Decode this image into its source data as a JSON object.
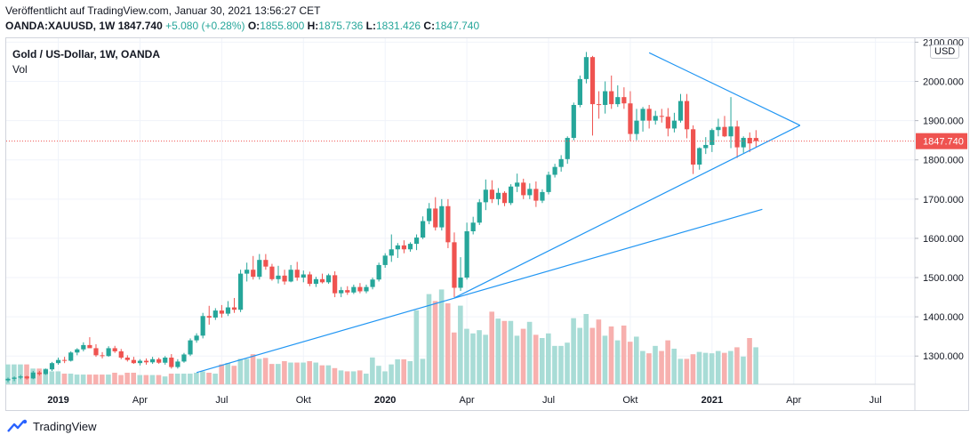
{
  "header": {
    "published": "Veröffentlicht auf TradingView.com, Januar 30, 2021 13:56:27 CET",
    "symbol": "OANDA:XAUUSD, 1W",
    "last": "1847.740",
    "change": "+5.080 (+0.28%)",
    "open_label": "O:",
    "open": "1855.800",
    "high_label": "H:",
    "high": "1875.736",
    "low_label": "L:",
    "low": "1831.426",
    "close_label": "C:",
    "close": "1847.740"
  },
  "legend": {
    "title": "Gold  / US-Dollar, 1W, OANDA",
    "volume": "Vol"
  },
  "price_axis": {
    "currency": "USD",
    "last_price_label": "1847.740"
  },
  "footer": {
    "brand": "TradingView"
  },
  "colors": {
    "up": "#26a69a",
    "down": "#ef5350",
    "trendline": "#2196f3",
    "up_vol": "#a8dcd6",
    "down_vol": "#f7b0ae"
  },
  "chart_data": {
    "type": "candlestick",
    "title": "Gold  / US-Dollar, 1W, OANDA",
    "x_ticks": [
      {
        "label": "2019",
        "bold": true,
        "week": 8
      },
      {
        "label": "Apr",
        "bold": false,
        "week": 21
      },
      {
        "label": "Jul",
        "bold": false,
        "week": 34
      },
      {
        "label": "Okt",
        "bold": false,
        "week": 47
      },
      {
        "label": "2020",
        "bold": true,
        "week": 60
      },
      {
        "label": "Apr",
        "bold": false,
        "week": 73
      },
      {
        "label": "Jul",
        "bold": false,
        "week": 86
      },
      {
        "label": "Okt",
        "bold": false,
        "week": 99
      },
      {
        "label": "2021",
        "bold": true,
        "week": 112
      },
      {
        "label": "Apr",
        "bold": false,
        "week": 125
      },
      {
        "label": "Jul",
        "bold": false,
        "week": 138
      }
    ],
    "y_ticks": [
      "2100.000",
      "2000.000",
      "1900.000",
      "1800.000",
      "1700.000",
      "1600.000",
      "1500.000",
      "1400.000",
      "1300.000"
    ],
    "y_range": [
      1228,
      2110
    ],
    "last_price": 1847.74,
    "candles": [
      [
        1238,
        1245,
        1233,
        1242
      ],
      [
        1242,
        1248,
        1236,
        1245
      ],
      [
        1245,
        1252,
        1241,
        1248
      ],
      [
        1248,
        1250,
        1240,
        1243
      ],
      [
        1243,
        1262,
        1241,
        1258
      ],
      [
        1258,
        1262,
        1250,
        1254
      ],
      [
        1254,
        1268,
        1252,
        1266
      ],
      [
        1266,
        1285,
        1262,
        1282
      ],
      [
        1282,
        1296,
        1278,
        1290
      ],
      [
        1290,
        1298,
        1282,
        1288
      ],
      [
        1288,
        1312,
        1286,
        1309
      ],
      [
        1309,
        1320,
        1302,
        1317
      ],
      [
        1317,
        1335,
        1312,
        1328
      ],
      [
        1328,
        1348,
        1322,
        1320
      ],
      [
        1320,
        1330,
        1298,
        1302
      ],
      [
        1302,
        1310,
        1294,
        1300
      ],
      [
        1300,
        1325,
        1298,
        1320
      ],
      [
        1320,
        1326,
        1308,
        1312
      ],
      [
        1312,
        1318,
        1292,
        1296
      ],
      [
        1296,
        1302,
        1286,
        1290
      ],
      [
        1290,
        1298,
        1280,
        1282
      ],
      [
        1282,
        1292,
        1276,
        1288
      ],
      [
        1288,
        1294,
        1278,
        1284
      ],
      [
        1284,
        1298,
        1280,
        1292
      ],
      [
        1292,
        1296,
        1280,
        1283
      ],
      [
        1283,
        1300,
        1278,
        1296
      ],
      [
        1296,
        1305,
        1268,
        1272
      ],
      [
        1272,
        1292,
        1268,
        1286
      ],
      [
        1286,
        1308,
        1283,
        1304
      ],
      [
        1304,
        1345,
        1300,
        1340
      ],
      [
        1340,
        1358,
        1334,
        1352
      ],
      [
        1352,
        1410,
        1345,
        1402
      ],
      [
        1402,
        1428,
        1380,
        1398
      ],
      [
        1398,
        1422,
        1392,
        1416
      ],
      [
        1416,
        1430,
        1398,
        1408
      ],
      [
        1408,
        1440,
        1402,
        1424
      ],
      [
        1424,
        1448,
        1410,
        1418
      ],
      [
        1418,
        1520,
        1412,
        1510
      ],
      [
        1510,
        1538,
        1490,
        1520
      ],
      [
        1520,
        1555,
        1495,
        1502
      ],
      [
        1502,
        1560,
        1495,
        1545
      ],
      [
        1545,
        1560,
        1520,
        1528
      ],
      [
        1528,
        1535,
        1492,
        1496
      ],
      [
        1496,
        1530,
        1485,
        1505
      ],
      [
        1505,
        1520,
        1482,
        1490
      ],
      [
        1490,
        1532,
        1488,
        1520
      ],
      [
        1520,
        1540,
        1492,
        1500
      ],
      [
        1500,
        1518,
        1488,
        1508
      ],
      [
        1508,
        1515,
        1478,
        1484
      ],
      [
        1484,
        1502,
        1476,
        1496
      ],
      [
        1496,
        1510,
        1485,
        1488
      ],
      [
        1488,
        1510,
        1484,
        1506
      ],
      [
        1506,
        1516,
        1450,
        1460
      ],
      [
        1460,
        1476,
        1450,
        1468
      ],
      [
        1468,
        1478,
        1456,
        1462
      ],
      [
        1462,
        1482,
        1458,
        1476
      ],
      [
        1476,
        1486,
        1460,
        1465
      ],
      [
        1465,
        1482,
        1460,
        1476
      ],
      [
        1476,
        1500,
        1470,
        1495
      ],
      [
        1495,
        1538,
        1490,
        1532
      ],
      [
        1532,
        1562,
        1525,
        1556
      ],
      [
        1556,
        1610,
        1540,
        1572
      ],
      [
        1572,
        1588,
        1550,
        1582
      ],
      [
        1582,
        1595,
        1562,
        1572
      ],
      [
        1572,
        1590,
        1566,
        1586
      ],
      [
        1586,
        1610,
        1570,
        1602
      ],
      [
        1602,
        1656,
        1598,
        1644
      ],
      [
        1644,
        1690,
        1636,
        1676
      ],
      [
        1676,
        1705,
        1620,
        1628
      ],
      [
        1628,
        1700,
        1620,
        1682
      ],
      [
        1682,
        1700,
        1575,
        1590
      ],
      [
        1590,
        1615,
        1450,
        1474
      ],
      [
        1474,
        1552,
        1466,
        1500
      ],
      [
        1500,
        1640,
        1495,
        1618
      ],
      [
        1618,
        1655,
        1610,
        1640
      ],
      [
        1640,
        1700,
        1634,
        1692
      ],
      [
        1692,
        1750,
        1672,
        1724
      ],
      [
        1724,
        1748,
        1690,
        1700
      ],
      [
        1700,
        1728,
        1685,
        1716
      ],
      [
        1716,
        1720,
        1682,
        1690
      ],
      [
        1690,
        1738,
        1685,
        1732
      ],
      [
        1732,
        1765,
        1718,
        1742
      ],
      [
        1742,
        1752,
        1700,
        1710
      ],
      [
        1710,
        1740,
        1700,
        1726
      ],
      [
        1726,
        1745,
        1680,
        1696
      ],
      [
        1696,
        1725,
        1690,
        1718
      ],
      [
        1718,
        1770,
        1712,
        1762
      ],
      [
        1762,
        1790,
        1755,
        1782
      ],
      [
        1782,
        1812,
        1770,
        1802
      ],
      [
        1802,
        1860,
        1790,
        1856
      ],
      [
        1856,
        1946,
        1850,
        1940
      ],
      [
        1940,
        2015,
        1934,
        2006
      ],
      [
        2006,
        2075,
        1995,
        2062
      ],
      [
        2062,
        2065,
        1862,
        1942
      ],
      [
        1942,
        1975,
        1905,
        1940
      ],
      [
        1940,
        2000,
        1918,
        1975
      ],
      [
        1975,
        2015,
        1930,
        1942
      ],
      [
        1942,
        1990,
        1935,
        1960
      ],
      [
        1960,
        1985,
        1930,
        1944
      ],
      [
        1944,
        1975,
        1848,
        1866
      ],
      [
        1866,
        1930,
        1850,
        1900
      ],
      [
        1900,
        1935,
        1872,
        1930
      ],
      [
        1930,
        1940,
        1880,
        1900
      ],
      [
        1900,
        1925,
        1890,
        1912
      ],
      [
        1912,
        1930,
        1895,
        1910
      ],
      [
        1910,
        1932,
        1860,
        1880
      ],
      [
        1880,
        1920,
        1870,
        1900
      ],
      [
        1900,
        1968,
        1895,
        1950
      ],
      [
        1950,
        1968,
        1855,
        1878
      ],
      [
        1878,
        1888,
        1764,
        1788
      ],
      [
        1788,
        1832,
        1775,
        1830
      ],
      [
        1830,
        1858,
        1815,
        1838
      ],
      [
        1838,
        1880,
        1820,
        1876
      ],
      [
        1876,
        1905,
        1860,
        1884
      ],
      [
        1884,
        1912,
        1858,
        1860
      ],
      [
        1860,
        1960,
        1830,
        1885
      ],
      [
        1885,
        1900,
        1805,
        1832
      ],
      [
        1832,
        1860,
        1818,
        1856
      ],
      [
        1856,
        1870,
        1820,
        1842
      ],
      [
        1855.8,
        1875.736,
        1831.426,
        1847.74
      ]
    ],
    "volume": [
      0.43,
      0.43,
      0.43,
      0.43,
      0.34,
      0.34,
      0.34,
      0.28,
      0.28,
      0.23,
      0.23,
      0.21,
      0.21,
      0.21,
      0.21,
      0.21,
      0.21,
      0.25,
      0.2,
      0.25,
      0.25,
      0.2,
      0.2,
      0.2,
      0.2,
      0.17,
      0.23,
      0.23,
      0.23,
      0.23,
      0.25,
      0.28,
      0.25,
      0.23,
      0.43,
      0.46,
      0.4,
      0.55,
      0.55,
      0.65,
      0.55,
      0.57,
      0.44,
      0.44,
      0.5,
      0.47,
      0.47,
      0.47,
      0.5,
      0.47,
      0.41,
      0.41,
      0.35,
      0.3,
      0.28,
      0.28,
      0.3,
      0.23,
      0.58,
      0.4,
      0.28,
      0.43,
      0.54,
      0.54,
      0.5,
      1.6,
      0.55,
      1.95,
      1.8,
      2.05,
      1.75,
      1.12,
      1.7,
      1.2,
      1.1,
      1.17,
      1.07,
      1.57,
      1.42,
      1.37,
      1.37,
      1.05,
      1.2,
      1.35,
      1.07,
      1.0,
      1.1,
      0.83,
      0.83,
      0.9,
      1.43,
      1.22,
      1.52,
      1.22,
      1.4,
      1.05,
      1.25,
      0.95,
      1.27,
      0.92,
      1.03,
      0.72,
      0.67,
      0.83,
      0.72,
      0.95,
      0.77,
      0.55,
      0.55,
      0.65,
      0.7,
      0.68,
      0.67,
      0.72,
      0.68,
      0.72,
      0.8,
      0.6,
      1.0,
      0.8
    ],
    "volume_colors": [
      1,
      1,
      1,
      0,
      1,
      0,
      1,
      1,
      1,
      0,
      1,
      1,
      1,
      0,
      0,
      0,
      1,
      0,
      0,
      0,
      0,
      1,
      0,
      1,
      0,
      1,
      0,
      1,
      1,
      1,
      1,
      1,
      0,
      1,
      0,
      1,
      0,
      1,
      1,
      0,
      1,
      0,
      0,
      1,
      0,
      1,
      0,
      1,
      0,
      1,
      0,
      1,
      0,
      1,
      0,
      1,
      0,
      1,
      1,
      1,
      1,
      1,
      1,
      0,
      1,
      1,
      1,
      1,
      0,
      1,
      0,
      0,
      1,
      1,
      1,
      1,
      1,
      0,
      1,
      0,
      1,
      1,
      0,
      1,
      0,
      1,
      1,
      1,
      1,
      1,
      1,
      1,
      1,
      0,
      0,
      1,
      0,
      1,
      0,
      0,
      1,
      1,
      0,
      1,
      0,
      0,
      1,
      1,
      0,
      0,
      1,
      1,
      1,
      1,
      0,
      1,
      0,
      1,
      0,
      1
    ],
    "trendlines": [
      {
        "from": [
          102,
          2073
        ],
        "to": [
          126,
          1888
        ]
      },
      {
        "from": [
          71,
          1448
        ],
        "to": [
          126,
          1888
        ]
      },
      {
        "from": [
          30,
          1258
        ],
        "to": [
          120,
          1674
        ]
      }
    ]
  }
}
